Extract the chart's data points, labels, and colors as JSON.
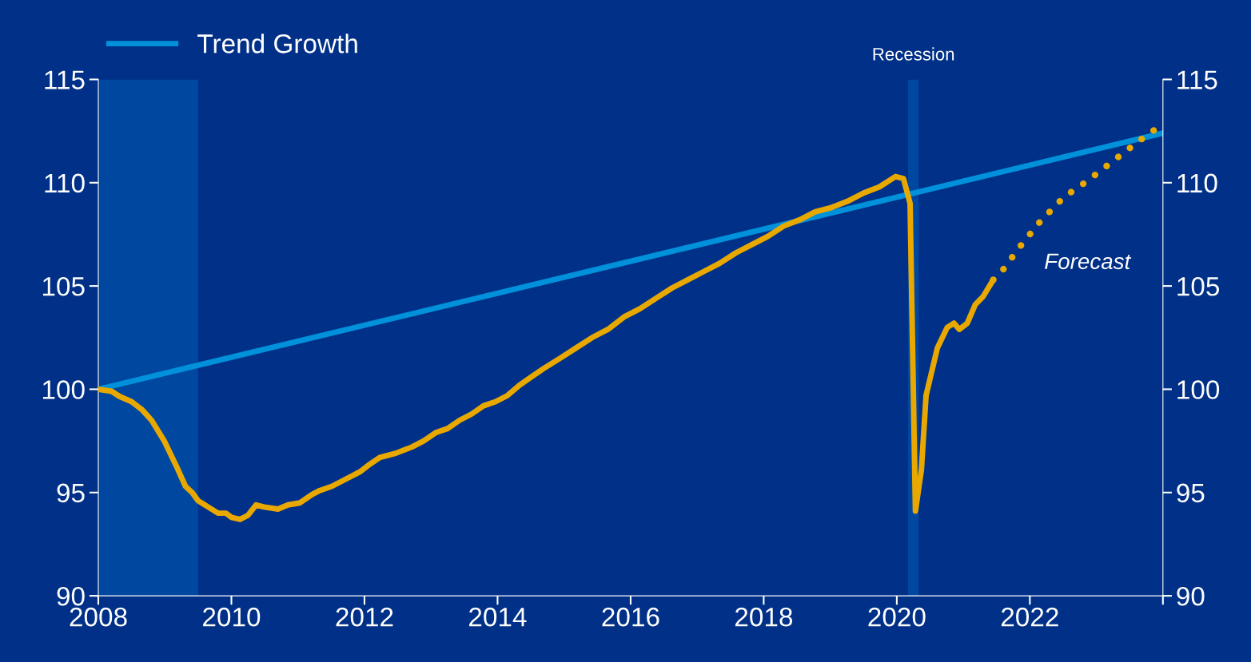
{
  "chart_data": {
    "type": "line",
    "xlim": [
      2008,
      2024
    ],
    "xticks": [
      2008,
      2010,
      2012,
      2014,
      2016,
      2018,
      2020,
      2022,
      {
        "value": 2024,
        "label": null
      }
    ],
    "ylim": [
      90,
      115
    ],
    "yticks": [
      90,
      95,
      100,
      105,
      110,
      115
    ],
    "y2lim": [
      90,
      115
    ],
    "y2ticks": [
      90,
      95,
      100,
      105,
      110,
      115
    ],
    "grid": false,
    "legend": "top left",
    "bands": [
      {
        "axis": "x",
        "from": 2008,
        "to": 2009.5,
        "label": null,
        "color": "#0047a0"
      },
      {
        "axis": "x",
        "from": 2020.17,
        "to": 2020.33,
        "label": "Recession",
        "color": "#0047a0"
      }
    ],
    "annotations": [
      "Forecast"
    ],
    "series": [
      {
        "name": "Trend Growth",
        "color": "#0091da",
        "line_style": "solid",
        "x": [
          2008,
          2024
        ],
        "values": [
          100,
          112.4
        ]
      },
      {
        "color": "#e8a800",
        "line_style": "solid",
        "x": [
          2008.0,
          2008.2,
          2008.32,
          2008.5,
          2008.66,
          2008.8,
          2008.99,
          2009.17,
          2009.31,
          2009.41,
          2009.5,
          2009.65,
          2009.8,
          2009.92,
          2010.0,
          2010.13,
          2010.25,
          2010.37,
          2010.49,
          2010.7,
          2010.85,
          2011.03,
          2011.21,
          2011.33,
          2011.51,
          2011.69,
          2011.93,
          2012.05,
          2012.23,
          2012.47,
          2012.71,
          2012.89,
          2013.07,
          2013.25,
          2013.43,
          2013.61,
          2013.79,
          2013.97,
          2014.15,
          2014.33,
          2014.51,
          2014.69,
          2014.94,
          2015.18,
          2015.42,
          2015.66,
          2015.9,
          2016.14,
          2016.38,
          2016.62,
          2016.86,
          2017.1,
          2017.34,
          2017.58,
          2017.82,
          2018.06,
          2018.3,
          2018.54,
          2018.78,
          2019.02,
          2019.26,
          2019.5,
          2019.74,
          2019.98,
          2020.1,
          2020.2,
          2020.28,
          2020.37,
          2020.44,
          2020.61,
          2020.76,
          2020.86,
          2020.94,
          2021.06,
          2021.18,
          2021.3,
          2021.45
        ],
        "values": [
          100,
          99.9,
          99.65,
          99.4,
          99.0,
          98.5,
          97.5,
          96.3,
          95.3,
          95.0,
          94.6,
          94.3,
          94.0,
          94.0,
          93.8,
          93.7,
          93.9,
          94.4,
          94.3,
          94.2,
          94.4,
          94.5,
          94.9,
          95.1,
          95.3,
          95.6,
          96.0,
          96.3,
          96.7,
          96.9,
          97.2,
          97.5,
          97.9,
          98.1,
          98.5,
          98.8,
          99.2,
          99.4,
          99.7,
          100.2,
          100.6,
          101.0,
          101.5,
          102.0,
          102.5,
          102.9,
          103.5,
          103.9,
          104.4,
          104.9,
          105.3,
          105.7,
          106.1,
          106.6,
          107.0,
          107.4,
          107.9,
          108.2,
          108.6,
          108.8,
          109.1,
          109.5,
          109.8,
          110.3,
          110.2,
          109.0,
          94.1,
          96.1,
          99.7,
          102.0,
          103.0,
          103.2,
          102.9,
          103.2,
          104.1,
          104.5,
          105.3
        ]
      },
      {
        "color": "#e8a800",
        "line_style": "dotted",
        "x": [
          2021.45,
          2021.6,
          2021.85,
          2022.15,
          2022.51,
          2022.87,
          2023.23,
          2023.59,
          2023.89
        ],
        "values": [
          105.3,
          105.8,
          106.9,
          108.1,
          109.3,
          110.1,
          111.0,
          111.9,
          112.6
        ]
      }
    ]
  }
}
